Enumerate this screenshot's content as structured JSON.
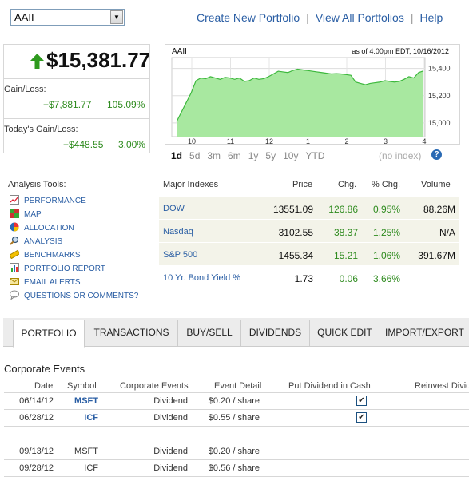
{
  "portfolio_select": {
    "value": "AAII"
  },
  "top_links": {
    "create": "Create New Portfolio",
    "view_all": "View All Portfolios",
    "help": "Help",
    "separator": "|"
  },
  "summary": {
    "value": "$15,381.77",
    "gain_loss_label": "Gain/Loss:",
    "gain_loss_amount": "+$7,881.77",
    "gain_loss_pct": "105.09%",
    "todays_label": "Today's Gain/Loss:",
    "todays_amount": "+$448.55",
    "todays_pct": "3.00%"
  },
  "chart": {
    "title": "AAII",
    "as_of": "as of 4:00pm EDT, 10/16/2012",
    "fill_color": "#a8e8a0",
    "line_color": "#3db83d"
  },
  "chart_data": {
    "type": "area",
    "x_ticks": [
      "10",
      "11",
      "12",
      "1",
      "2",
      "3",
      "4"
    ],
    "y_ticks": [
      "15,400",
      "15,200",
      "15,000"
    ],
    "ylim": [
      14900,
      15480
    ],
    "values": [
      15010,
      15080,
      15150,
      15220,
      15310,
      15330,
      15325,
      15340,
      15330,
      15320,
      15335,
      15330,
      15320,
      15330,
      15305,
      15310,
      15330,
      15320,
      15325,
      15340,
      15360,
      15380,
      15375,
      15370,
      15385,
      15395,
      15390,
      15385,
      15380,
      15375,
      15370,
      15365,
      15360,
      15362,
      15360,
      15355,
      15350,
      15300,
      15290,
      15280,
      15290,
      15295,
      15300,
      15310,
      15305,
      15300,
      15305,
      15320,
      15340,
      15330,
      15370,
      15382
    ]
  },
  "time_ranges": [
    "1d",
    "5d",
    "3m",
    "6m",
    "1y",
    "5y",
    "10y",
    "YTD"
  ],
  "no_index": "(no index)",
  "help_icon": "?",
  "analysis_tools": {
    "title": "Analysis Tools:",
    "items": [
      {
        "label": "PERFORMANCE",
        "icon": "line-chart-icon"
      },
      {
        "label": "MAP",
        "icon": "heatmap-icon"
      },
      {
        "label": "ALLOCATION",
        "icon": "pie-chart-icon"
      },
      {
        "label": "ANALYSIS",
        "icon": "magnifier-icon"
      },
      {
        "label": "BENCHMARKS",
        "icon": "ruler-icon"
      },
      {
        "label": "PORTFOLIO REPORT",
        "icon": "bar-report-icon"
      },
      {
        "label": "EMAIL ALERTS",
        "icon": "envelope-icon"
      },
      {
        "label": "QUESTIONS OR COMMENTS?",
        "icon": "speech-bubble-icon"
      }
    ]
  },
  "indexes": {
    "headers": {
      "name": "Major Indexes",
      "price": "Price",
      "chg": "Chg.",
      "pct": "% Chg.",
      "volume": "Volume"
    },
    "rows": [
      {
        "name": "DOW",
        "price": "13551.09",
        "chg": "126.86",
        "pct": "0.95%",
        "volume": "88.26M"
      },
      {
        "name": "Nasdaq",
        "price": "3102.55",
        "chg": "38.37",
        "pct": "1.25%",
        "volume": "N/A"
      },
      {
        "name": "S&P 500",
        "price": "1455.34",
        "chg": "15.21",
        "pct": "1.06%",
        "volume": "391.67M"
      },
      {
        "name": "10 Yr. Bond Yield %",
        "price": "1.73",
        "chg": "0.06",
        "pct": "3.66%",
        "volume": ""
      }
    ]
  },
  "tabs": [
    "PORTFOLIO",
    "TRANSACTIONS",
    "BUY/SELL",
    "DIVIDENDS",
    "QUICK EDIT",
    "IMPORT/EXPORT"
  ],
  "corporate_events": {
    "title": "Corporate Events",
    "headers": {
      "date": "Date",
      "symbol": "Symbol",
      "event": "Corporate Events",
      "detail": "Event Detail",
      "put_cash": "Put Dividend in Cash",
      "reinvest": "Reinvest Divid"
    },
    "rows": [
      {
        "date": "06/14/12",
        "symbol": "MSFT",
        "event": "Dividend",
        "detail": "$0.20 / share",
        "checked": true
      },
      {
        "date": "06/28/12",
        "symbol": "ICF",
        "event": "Dividend",
        "detail": "$0.55 / share",
        "checked": true
      }
    ],
    "future_rows": [
      {
        "date": "09/13/12",
        "symbol": "MSFT",
        "event": "Dividend",
        "detail": "$0.20 / share"
      },
      {
        "date": "09/28/12",
        "symbol": "ICF",
        "event": "Dividend",
        "detail": "$0.56 / share"
      }
    ]
  }
}
